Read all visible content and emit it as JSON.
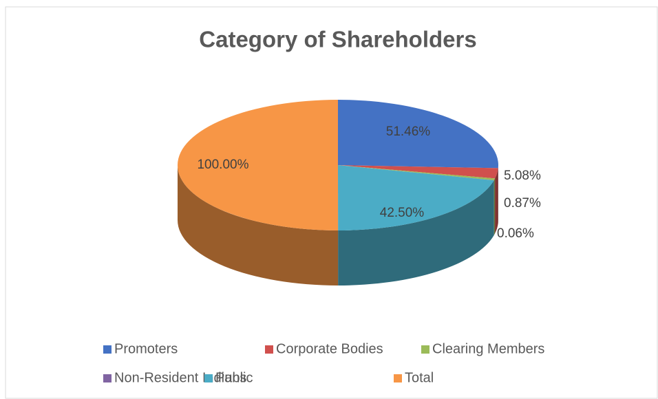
{
  "chart_data": {
    "type": "pie3d",
    "title": "Category of Shareholders",
    "categories": [
      "Promoters",
      "Corporate Bodies",
      "Clearing Members",
      "Non-Resident Indians",
      "Public",
      "Total"
    ],
    "values": [
      51.46,
      5.08,
      0.87,
      0.06,
      42.5,
      100
    ],
    "value_labels": [
      "51.46%",
      "5.08%",
      "0.87%",
      "0.06%",
      "42.50%",
      "100.00%"
    ],
    "colors": [
      "#4472c4",
      "#d0504d",
      "#9bbb59",
      "#8064a2",
      "#4bacc6",
      "#f79646"
    ],
    "legend": "bottom"
  }
}
